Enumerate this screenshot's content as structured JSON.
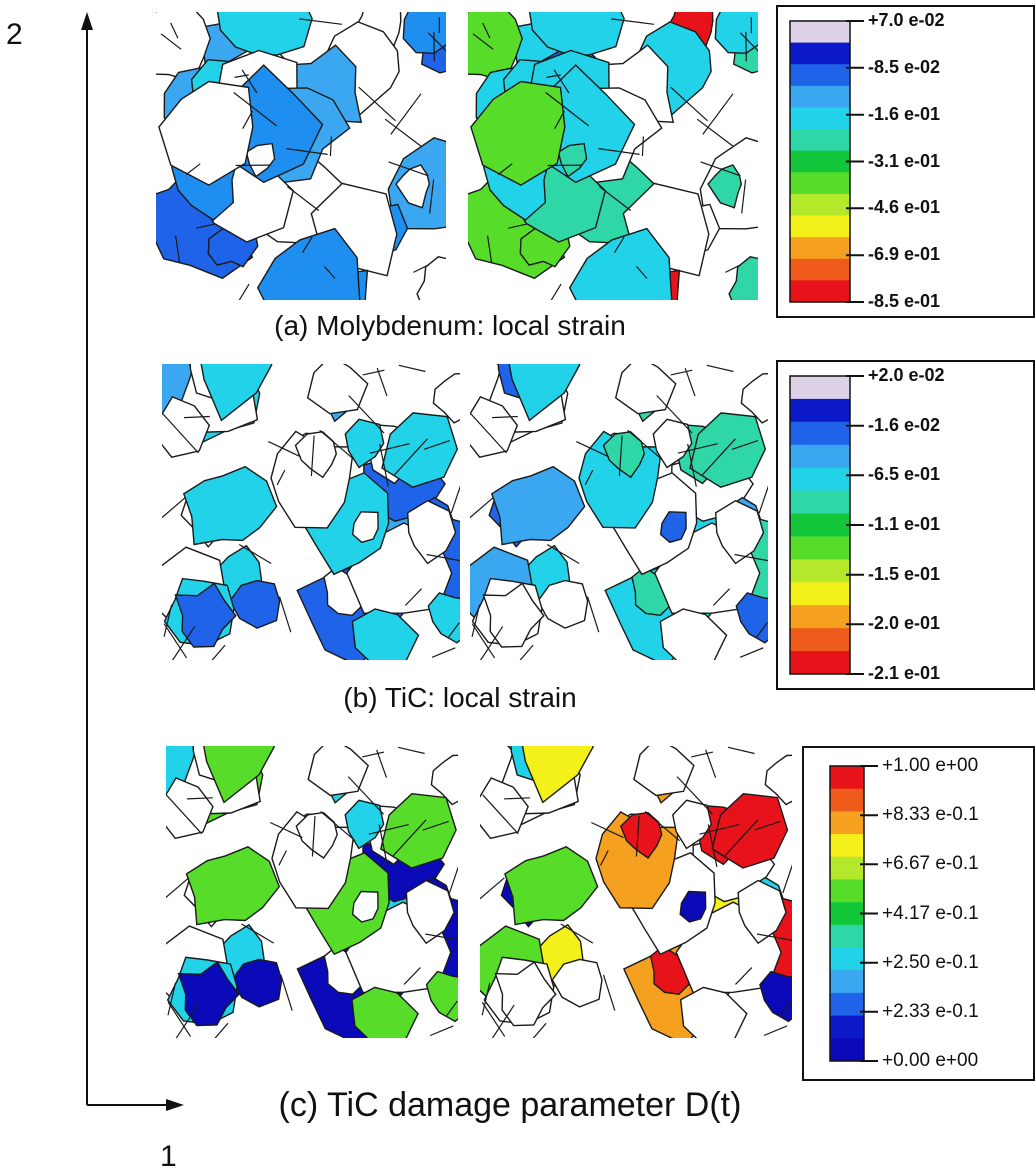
{
  "axes": {
    "vertical_label": "2",
    "horizontal_label": "1"
  },
  "palette": {
    "strain_colors": [
      "#ddd2e6",
      "#0c19c8",
      "#1f63e8",
      "#3aa7f0",
      "#22d2e8",
      "#2fd7a7",
      "#14c63a",
      "#57dc2a",
      "#b3e82b",
      "#f4f019",
      "#f5a01e",
      "#ef5b1b",
      "#e8121b"
    ],
    "damage_colors": [
      "#e8121b",
      "#ef5b1b",
      "#f5a01e",
      "#f4f019",
      "#b3e82b",
      "#57dc2a",
      "#14c63a",
      "#2fd7a7",
      "#22d2e8",
      "#3aa7f0",
      "#1f63e8",
      "#0c19c8",
      "#0a0ab8"
    ],
    "grain_outline": "#1a1a1a"
  },
  "panels": [
    {
      "caption": "(a) Molybdenum: local strain",
      "legend": [
        "+7.0 e-02",
        "-8.5 e-02",
        "-1.6 e-01",
        "-3.1 e-01",
        "-4.6 e-01",
        "-6.9 e-01",
        "-8.5 e-01"
      ],
      "maps": [
        {
          "name": "molybdenum-strain-map-left",
          "fill_colors": [
            "#1f63e8",
            "#3aa7f0",
            "#22d2e8",
            "#1e8ef0"
          ]
        },
        {
          "name": "molybdenum-strain-map-right",
          "fill_colors": [
            "#1f63e8",
            "#22d2e8",
            "#2fd7a7",
            "#57dc2a",
            "#e8121b"
          ]
        }
      ]
    },
    {
      "caption": "(b) TiC: local strain",
      "legend": [
        "+2.0 e-02",
        "-1.6 e-02",
        "-6.5 e-01",
        "-1.1 e-01",
        "-1.5 e-01",
        "-2.0 e-01",
        "-2.1 e-01"
      ],
      "maps": [
        {
          "name": "tic-strain-map-left",
          "fill_colors": [
            "#1f63e8",
            "#3aa7f0",
            "#22d2e8"
          ]
        },
        {
          "name": "tic-strain-map-right",
          "fill_colors": [
            "#1f63e8",
            "#3aa7f0",
            "#22d2e8",
            "#2fd7a7"
          ]
        }
      ]
    },
    {
      "caption": "(c) TiC damage parameter D(t)",
      "legend": [
        "+1.00 e+00",
        "+8.33 e-0.1",
        "+6.67 e-0.1",
        "+4.17 e-0.1",
        "+2.50 e-0.1",
        "+2.33 e-0.1",
        "+0.00 e+00"
      ],
      "maps": [
        {
          "name": "tic-damage-map-left",
          "fill_colors": [
            "#0a0ab8",
            "#1f63e8",
            "#22d2e8",
            "#57dc2a"
          ]
        },
        {
          "name": "tic-damage-map-right",
          "fill_colors": [
            "#0a0ab8",
            "#22d2e8",
            "#57dc2a",
            "#f4f019",
            "#f5a01e",
            "#e8121b"
          ]
        }
      ]
    }
  ]
}
